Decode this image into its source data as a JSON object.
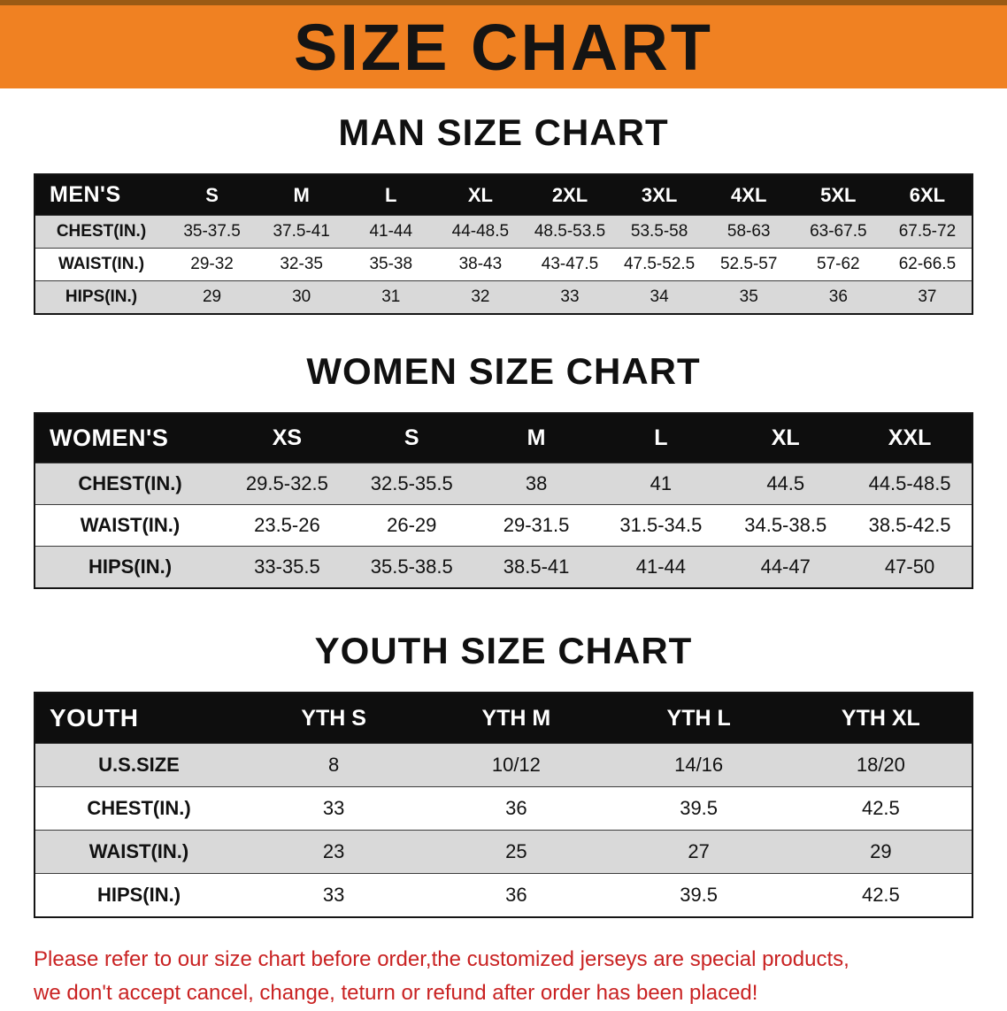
{
  "banner": {
    "title": "SIZE CHART"
  },
  "colors": {
    "banner_bg": "#F08122",
    "banner_edge": "#9A5A14",
    "table_header_bg": "#0E0E0E",
    "row_stripe": "#D9D9D9",
    "notice_red": "#C92222"
  },
  "sections": [
    {
      "heading": "MAN SIZE CHART",
      "table": {
        "header": [
          "MEN'S",
          "S",
          "M",
          "L",
          "XL",
          "2XL",
          "3XL",
          "4XL",
          "5XL",
          "6XL"
        ],
        "rows": [
          [
            "CHEST(IN.)",
            "35-37.5",
            "37.5-41",
            "41-44",
            "44-48.5",
            "48.5-53.5",
            "53.5-58",
            "58-63",
            "63-67.5",
            "67.5-72"
          ],
          [
            "WAIST(IN.)",
            "29-32",
            "32-35",
            "35-38",
            "38-43",
            "43-47.5",
            "47.5-52.5",
            "52.5-57",
            "57-62",
            "62-66.5"
          ],
          [
            "HIPS(IN.)",
            "29",
            "30",
            "31",
            "32",
            "33",
            "34",
            "35",
            "36",
            "37"
          ]
        ]
      }
    },
    {
      "heading": "WOMEN SIZE CHART",
      "table": {
        "header": [
          "WOMEN'S",
          "XS",
          "S",
          "M",
          "L",
          "XL",
          "XXL"
        ],
        "rows": [
          [
            "CHEST(IN.)",
            "29.5-32.5",
            "32.5-35.5",
            "38",
            "41",
            "44.5",
            "44.5-48.5"
          ],
          [
            "WAIST(IN.)",
            "23.5-26",
            "26-29",
            "29-31.5",
            "31.5-34.5",
            "34.5-38.5",
            "38.5-42.5"
          ],
          [
            "HIPS(IN.)",
            "33-35.5",
            "35.5-38.5",
            "38.5-41",
            "41-44",
            "44-47",
            "47-50"
          ]
        ]
      }
    },
    {
      "heading": "YOUTH SIZE CHART",
      "table": {
        "header": [
          "YOUTH",
          "YTH S",
          "YTH M",
          "YTH L",
          "YTH XL"
        ],
        "rows": [
          [
            "U.S.SIZE",
            "8",
            "10/12",
            "14/16",
            "18/20"
          ],
          [
            "CHEST(IN.)",
            "33",
            "36",
            "39.5",
            "42.5"
          ],
          [
            "WAIST(IN.)",
            "23",
            "25",
            "27",
            "29"
          ],
          [
            "HIPS(IN.)",
            "33",
            "36",
            "39.5",
            "42.5"
          ]
        ]
      }
    }
  ],
  "notice": {
    "line1": "Please refer to our size chart before order,the customized jerseys are special products,",
    "line2": "we don't accept cancel, change, teturn or refund after order has been placed!"
  }
}
